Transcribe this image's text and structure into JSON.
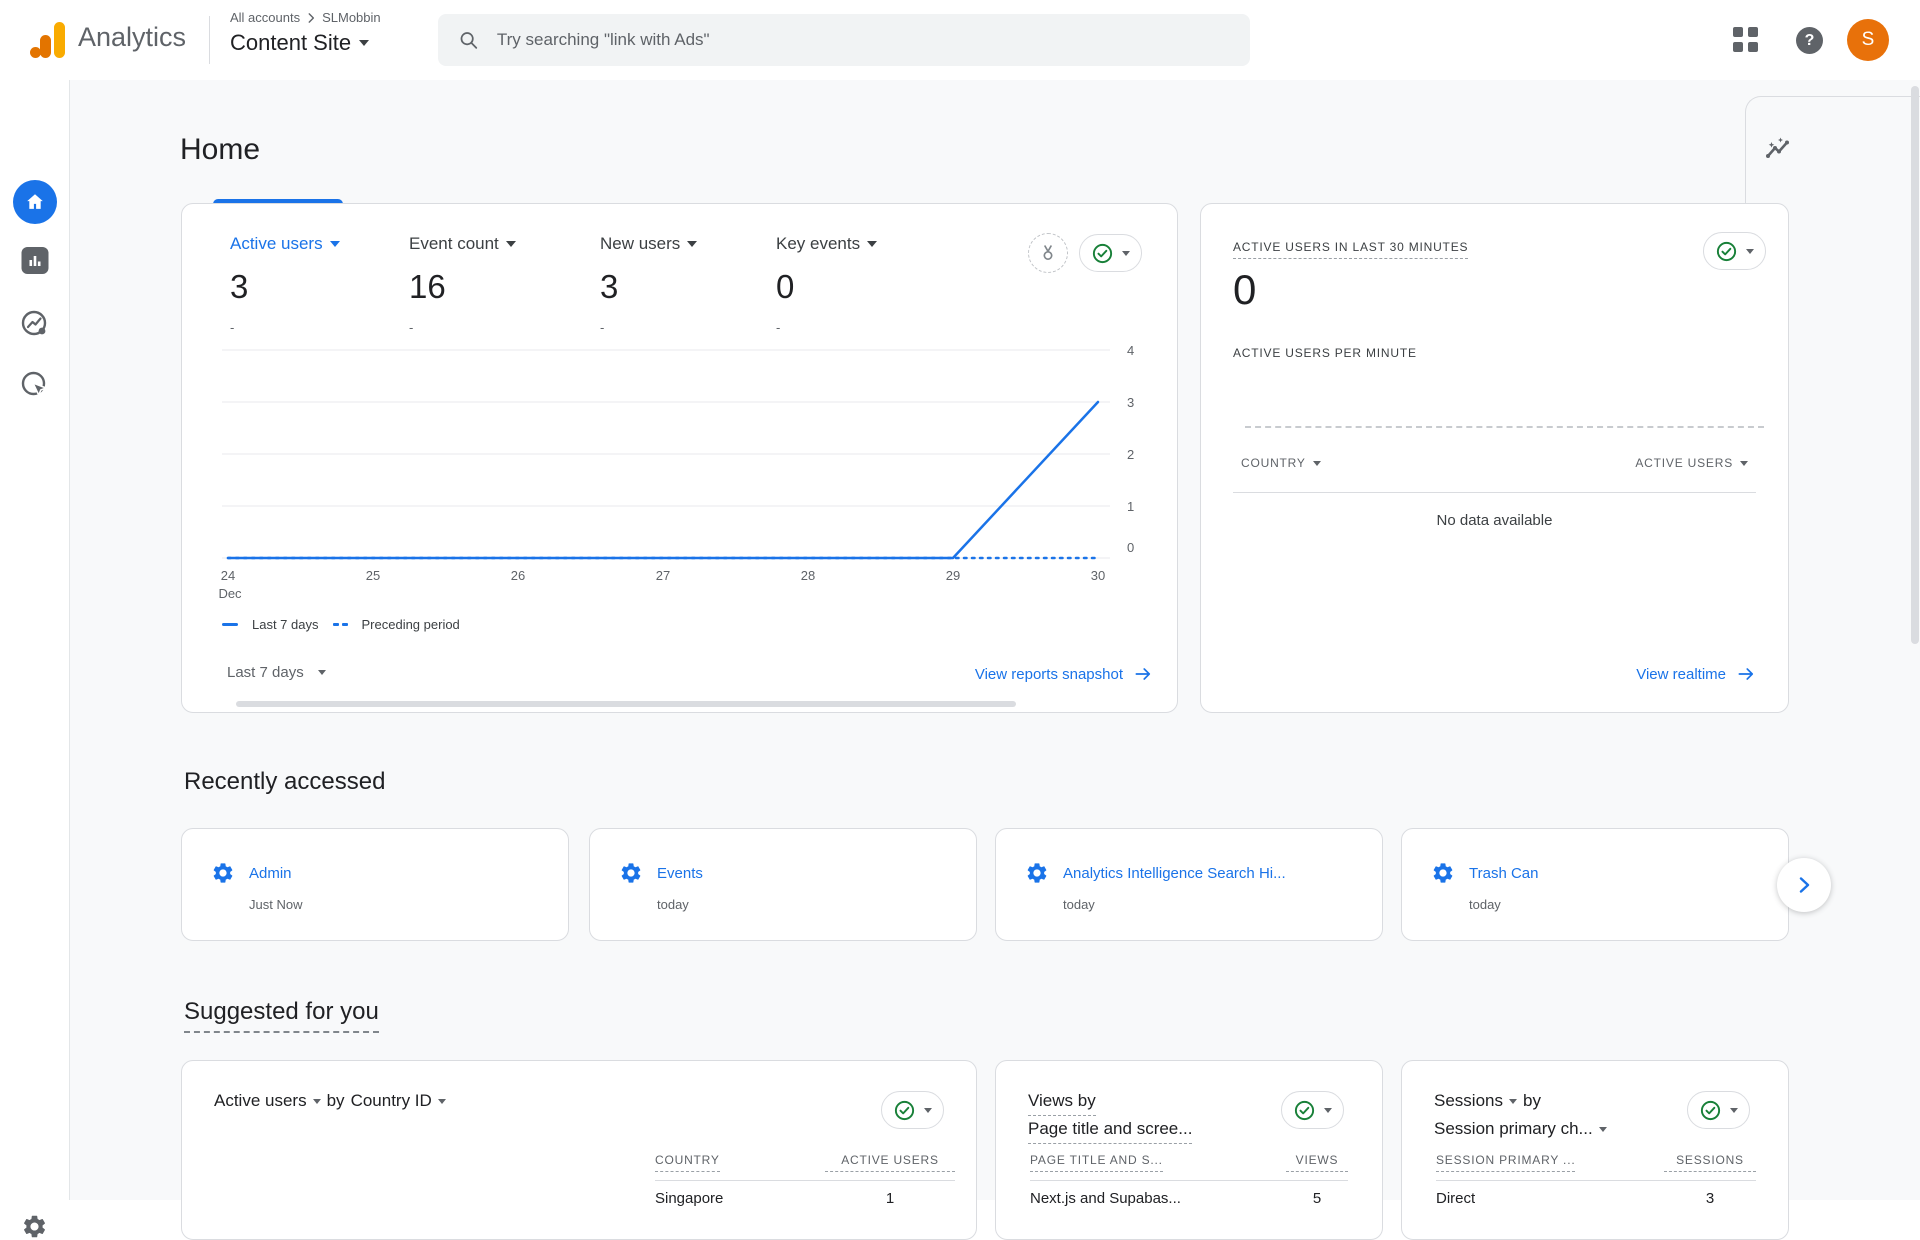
{
  "colors": {
    "accent": "#1a73e8",
    "green": "#188038",
    "avatar": "#e8710a",
    "logo_amber": "#f9ab00",
    "logo_orange": "#e37400"
  },
  "header": {
    "brand": "Analytics",
    "breadcrumb": {
      "accounts": "All accounts",
      "account": "SLMobbin"
    },
    "property": "Content Site",
    "search": {
      "placeholder": "Try searching \"link with Ads\""
    },
    "avatar_initial": "S"
  },
  "sidebar": {
    "items": [
      {
        "label": "Home"
      },
      {
        "label": "Reports"
      },
      {
        "label": "Explore"
      },
      {
        "label": "Advertising"
      },
      {
        "label": "Admin"
      }
    ]
  },
  "page": {
    "title": "Home"
  },
  "overview_card": {
    "metrics": [
      {
        "label": "Active users",
        "value": "3",
        "delta": "-",
        "selected": true
      },
      {
        "label": "Event count",
        "value": "16",
        "delta": "-",
        "selected": false
      },
      {
        "label": "New users",
        "value": "3",
        "delta": "-",
        "selected": false
      },
      {
        "label": "Key events",
        "value": "0",
        "delta": "-",
        "selected": false
      }
    ],
    "range_label": "Last 7 days",
    "link_label": "View reports snapshot"
  },
  "chart_data": {
    "type": "line",
    "x_labels": [
      "24 Dec",
      "25",
      "26",
      "27",
      "28",
      "29",
      "30"
    ],
    "series": [
      {
        "name": "Last 7 days",
        "style": "solid",
        "color": "#1a73e8",
        "values": [
          0,
          0,
          0,
          0,
          0,
          0,
          3
        ]
      },
      {
        "name": "Preceding period",
        "style": "dotted",
        "color": "#1a73e8",
        "values": [
          0,
          0,
          0,
          0,
          0,
          0,
          0
        ]
      }
    ],
    "ylim": [
      0,
      4
    ],
    "yticks": [
      0,
      1,
      2,
      3,
      4
    ],
    "grid": true,
    "legend_position": "bottom-left"
  },
  "realtime_card": {
    "title": "ACTIVE USERS IN LAST 30 MINUTES",
    "value": "0",
    "subtitle": "ACTIVE USERS PER MINUTE",
    "columns": {
      "left": "COUNTRY",
      "right": "ACTIVE USERS"
    },
    "empty_text": "No data available",
    "link_label": "View realtime",
    "per_minute_chart": {
      "type": "bar",
      "values": [],
      "note": "empty - dashed baseline only"
    }
  },
  "recently_accessed": {
    "heading": "Recently accessed",
    "items": [
      {
        "title": "Admin",
        "subtitle": "Just Now"
      },
      {
        "title": "Events",
        "subtitle": "today"
      },
      {
        "title": "Analytics Intelligence Search Hi...",
        "subtitle": "today"
      },
      {
        "title": "Trash Can",
        "subtitle": "today"
      }
    ]
  },
  "suggested": {
    "heading": "Suggested for you",
    "cards": [
      {
        "title_metric": "Active users",
        "title_join": "by",
        "title_dim": "Country ID",
        "col_left": "COUNTRY",
        "col_right": "ACTIVE USERS",
        "rows": [
          {
            "label": "Singapore",
            "value": "1"
          }
        ]
      },
      {
        "title_line1": "Views by",
        "title_line2": "Page title and scree...",
        "col_left": "PAGE TITLE AND S...",
        "col_right": "VIEWS",
        "rows": [
          {
            "label": "Next.js and Supabas...",
            "value": "5"
          }
        ]
      },
      {
        "title_metric": "Sessions",
        "title_join": "by",
        "title_dim": "Session primary ch...",
        "col_left": "SESSION PRIMARY ...",
        "col_right": "SESSIONS",
        "rows": [
          {
            "label": "Direct",
            "value": "3"
          }
        ]
      }
    ]
  }
}
